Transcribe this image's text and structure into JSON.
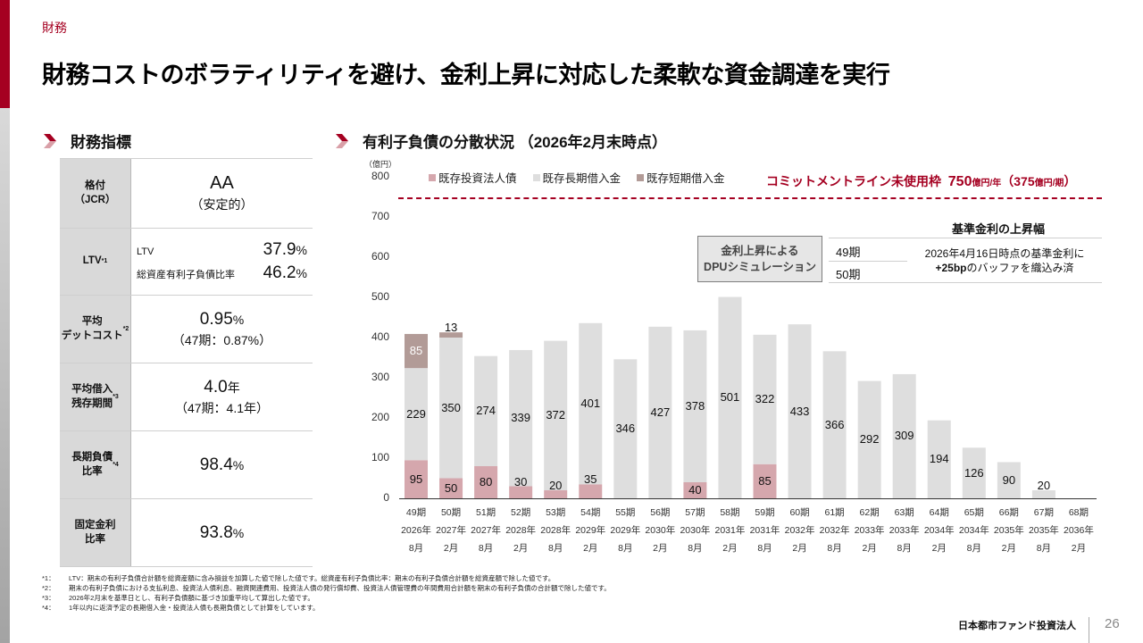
{
  "header": {
    "section": "財務",
    "title": "財務コストのボラティリティを避け、金利上昇に対応した柔軟な資金調達を実行"
  },
  "colors": {
    "brand_red": "#a50021",
    "bond": "#d5a7ad",
    "long_term_loan": "#dedede",
    "short_term_loan": "#b29b97"
  },
  "metrics": {
    "heading": "財務指標",
    "rows": [
      {
        "label": "格付\n（JCR）",
        "value": "AA",
        "sub": "（安定的）"
      },
      {
        "label": "LTV",
        "note": "*1",
        "lines": [
          {
            "label": "LTV",
            "value": "37.9",
            "unit": "%"
          },
          {
            "label": "総資産有利子負債比率",
            "value": "46.2",
            "unit": "%"
          }
        ]
      },
      {
        "label": "平均\nデットコスト",
        "note": "*2",
        "value": "0.95",
        "unit": "%",
        "sub": "（47期：0.87%）"
      },
      {
        "label": "平均借入\n残存期間",
        "note": "*3",
        "value": "4.0",
        "unit": "年",
        "sub": "（47期：4.1年）"
      },
      {
        "label": "長期負債\n比率",
        "note": "*4",
        "value": "98.4",
        "unit": "%"
      },
      {
        "label": "固定金利\n比率",
        "value": "93.8",
        "unit": "%"
      }
    ]
  },
  "chart_section": {
    "heading": "有利子負債の分散状況 （2026年2月末時点）",
    "commitment": {
      "label": "コミットメントライン未使用枠",
      "value": "750",
      "unit1": "億円/年",
      "paren_open": "（",
      "value2": "375",
      "unit2": "億円/期",
      "paren_close": "）"
    },
    "dpu_box": {
      "line1": "金利上昇による",
      "line2": "DPUシミュレーション"
    },
    "rate_table": {
      "title": "基準金利の上昇幅",
      "periods": [
        "49期",
        "50期"
      ],
      "desc_line1": "2026年4月16日時点の基準金利に",
      "desc_bold": "+25bp",
      "desc_line2": "のバッファを織込み済"
    }
  },
  "chart_data": {
    "type": "bar",
    "stacked": true,
    "title": "有利子負債の分散状況 （2026年2月末時点）",
    "ylabel": "（億円）",
    "ylim": [
      0,
      800
    ],
    "yticks": [
      0,
      100,
      200,
      300,
      400,
      500,
      600,
      700,
      800
    ],
    "grid": false,
    "legend_position": "top",
    "reference_line": {
      "value": 750,
      "label": "コミットメントライン未使用枠 750億円/年（375億円/期）",
      "style": "dashed"
    },
    "categories": [
      {
        "period": "49期",
        "year": "2026年",
        "month": "8月"
      },
      {
        "period": "50期",
        "year": "2027年",
        "month": "2月"
      },
      {
        "period": "51期",
        "year": "2027年",
        "month": "8月"
      },
      {
        "period": "52期",
        "year": "2028年",
        "month": "2月"
      },
      {
        "period": "53期",
        "year": "2028年",
        "month": "8月"
      },
      {
        "period": "54期",
        "year": "2029年",
        "month": "2月"
      },
      {
        "period": "55期",
        "year": "2029年",
        "month": "8月"
      },
      {
        "period": "56期",
        "year": "2030年",
        "month": "2月"
      },
      {
        "period": "57期",
        "year": "2030年",
        "month": "8月"
      },
      {
        "period": "58期",
        "year": "2031年",
        "month": "2月"
      },
      {
        "period": "59期",
        "year": "2031年",
        "month": "8月"
      },
      {
        "period": "60期",
        "year": "2032年",
        "month": "2月"
      },
      {
        "period": "61期",
        "year": "2032年",
        "month": "8月"
      },
      {
        "period": "62期",
        "year": "2033年",
        "month": "2月"
      },
      {
        "period": "63期",
        "year": "2033年",
        "month": "8月"
      },
      {
        "period": "64期",
        "year": "2034年",
        "month": "2月"
      },
      {
        "period": "65期",
        "year": "2034年",
        "month": "8月"
      },
      {
        "period": "66期",
        "year": "2035年",
        "month": "2月"
      },
      {
        "period": "67期",
        "year": "2035年",
        "month": "8月"
      },
      {
        "period": "68期",
        "year": "2036年",
        "month": "2月"
      }
    ],
    "series": [
      {
        "name": "既存投資法人債",
        "color": "#d5a7ad",
        "values": [
          95,
          50,
          80,
          30,
          20,
          35,
          0,
          0,
          40,
          0,
          85,
          0,
          0,
          0,
          0,
          0,
          0,
          0,
          0,
          0
        ]
      },
      {
        "name": "既存長期借入金",
        "color": "#dedede",
        "values": [
          229,
          350,
          274,
          339,
          372,
          401,
          346,
          427,
          378,
          501,
          322,
          433,
          366,
          292,
          309,
          194,
          126,
          90,
          20,
          0
        ]
      },
      {
        "name": "既存短期借入金",
        "color": "#b29b97",
        "values": [
          85,
          13,
          0,
          0,
          0,
          0,
          0,
          0,
          0,
          0,
          0,
          0,
          0,
          0,
          0,
          0,
          0,
          0,
          0,
          0
        ]
      }
    ]
  },
  "footnotes": [
    {
      "key": "*1：",
      "text": "LTV：期末の有利子負債合計額を総資産額に含み損益を加算した値で除した値です。総資産有利子負債比率：期末の有利子負債合計額を総資産額で除した値です。"
    },
    {
      "key": "*2：",
      "text": "期末の有利子負債における支払利息、投資法人債利息、融資関連費用、投資法人債の発行償却費、投資法人債管理費の年間費用合計額を期末の有利子負債の合計額で除した値です。"
    },
    {
      "key": "*3：",
      "text": "2026年2月末を基準日とし、有利子負債額に基づき加重平均して算出した値です。"
    },
    {
      "key": "*4：",
      "text": "1年以内に返済予定の長期借入金・投資法人債も長期負債として計算をしています。"
    }
  ],
  "footer": {
    "company": "日本都市ファンド投資法人",
    "page": "26"
  }
}
